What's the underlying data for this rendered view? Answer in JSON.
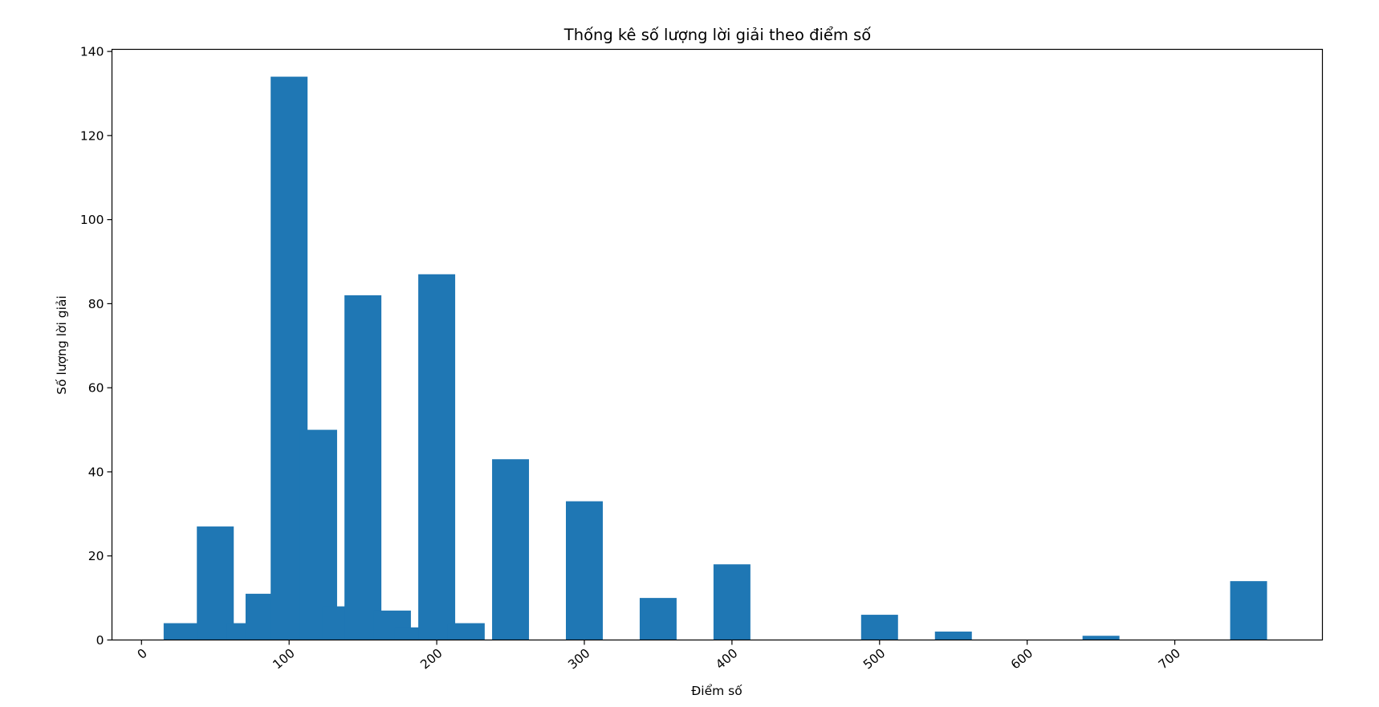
{
  "chart_data": {
    "type": "bar",
    "title": "Thống kê số lượng lời giải theo điểm số",
    "xlabel": "Điểm số",
    "ylabel": "Số lượng lời giải",
    "xlim": [
      -20,
      800
    ],
    "ylim": [
      0,
      140.5
    ],
    "xticks": [
      "0",
      "100",
      "200",
      "300",
      "400",
      "500",
      "600",
      "700"
    ],
    "xtick_values": [
      0,
      100,
      200,
      300,
      400,
      500,
      600,
      700
    ],
    "yticks": [
      "0",
      "20",
      "40",
      "60",
      "80",
      "100",
      "120",
      "140"
    ],
    "ytick_values": [
      0,
      20,
      40,
      60,
      80,
      100,
      120,
      140
    ],
    "bar_color": "#1f77b4",
    "grid": false,
    "legend": "none",
    "bars": [
      {
        "x": 27.5,
        "value": 4
      },
      {
        "x": 50,
        "value": 27
      },
      {
        "x": 70,
        "value": 4
      },
      {
        "x": 83,
        "value": 11
      },
      {
        "x": 100,
        "value": 134
      },
      {
        "x": 120,
        "value": 50
      },
      {
        "x": 135,
        "value": 8
      },
      {
        "x": 150,
        "value": 82
      },
      {
        "x": 170,
        "value": 7
      },
      {
        "x": 184,
        "value": 3
      },
      {
        "x": 200,
        "value": 87
      },
      {
        "x": 220,
        "value": 4
      },
      {
        "x": 250,
        "value": 43
      },
      {
        "x": 300,
        "value": 33
      },
      {
        "x": 350,
        "value": 10
      },
      {
        "x": 400,
        "value": 18
      },
      {
        "x": 500,
        "value": 6
      },
      {
        "x": 550,
        "value": 2
      },
      {
        "x": 650,
        "value": 1
      },
      {
        "x": 750,
        "value": 14
      }
    ]
  }
}
